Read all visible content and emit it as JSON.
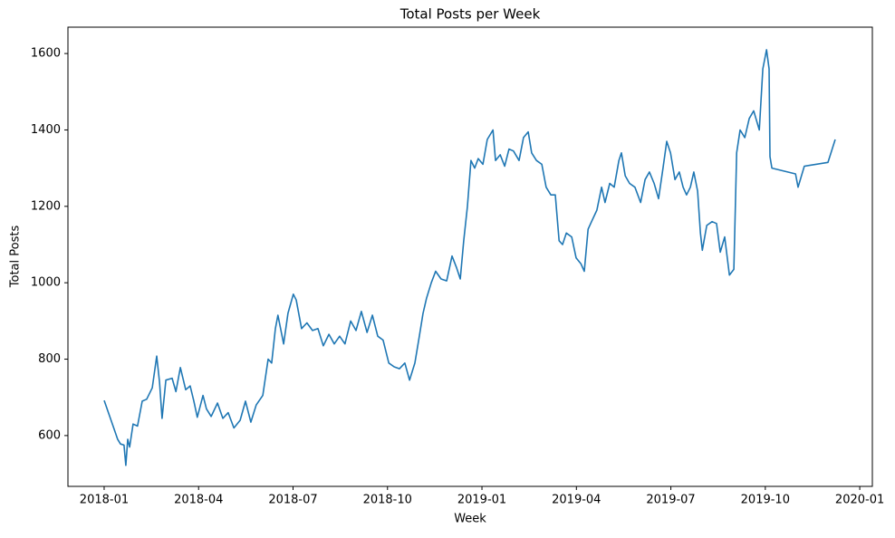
{
  "chart_data": {
    "type": "line",
    "title": "Total Posts per Week",
    "x_label": "Week",
    "y_label": "Total Posts",
    "xlim": [
      -1.15,
      24.4
    ],
    "ylim": [
      467,
      1669
    ],
    "xticks": [
      {
        "value": 0,
        "label": "2018-01"
      },
      {
        "value": 3,
        "label": "2018-04"
      },
      {
        "value": 6,
        "label": "2018-07"
      },
      {
        "value": 9,
        "label": "2018-10"
      },
      {
        "value": 12,
        "label": "2019-01"
      },
      {
        "value": 15,
        "label": "2019-04"
      },
      {
        "value": 18,
        "label": "2019-07"
      },
      {
        "value": 21,
        "label": "2019-10"
      },
      {
        "value": 24,
        "label": "2020-01"
      }
    ],
    "yticks": [
      600,
      800,
      1000,
      1200,
      1400,
      1600
    ],
    "x": [
      0,
      0.43,
      0.52,
      0.63,
      0.69,
      0.75,
      0.81,
      0.92,
      1.06,
      1.21,
      1.35,
      1.53,
      1.67,
      1.76,
      1.84,
      1.96,
      2.16,
      2.28,
      2.42,
      2.59,
      2.73,
      2.85,
      2.96,
      3.14,
      3.25,
      3.4,
      3.6,
      3.77,
      3.94,
      4.12,
      4.32,
      4.49,
      4.66,
      4.83,
      5.04,
      5.21,
      5.32,
      5.44,
      5.52,
      5.7,
      5.84,
      6.01,
      6.1,
      6.27,
      6.44,
      6.62,
      6.79,
      6.96,
      7.14,
      7.31,
      7.48,
      7.65,
      7.83,
      8.0,
      8.17,
      8.35,
      8.52,
      8.69,
      8.86,
      9.04,
      9.21,
      9.38,
      9.55,
      9.7,
      9.87,
      10.01,
      10.13,
      10.24,
      10.39,
      10.53,
      10.7,
      10.88,
      11.05,
      11.19,
      11.31,
      11.42,
      11.54,
      11.65,
      11.77,
      11.88,
      12.03,
      12.17,
      12.35,
      12.43,
      12.58,
      12.72,
      12.86,
      13.0,
      13.18,
      13.32,
      13.47,
      13.58,
      13.73,
      13.9,
      14.04,
      14.19,
      14.33,
      14.45,
      14.56,
      14.68,
      14.85,
      14.99,
      15.14,
      15.25,
      15.37,
      15.48,
      15.65,
      15.8,
      15.91,
      16.06,
      16.2,
      16.35,
      16.43,
      16.55,
      16.69,
      16.86,
      17.04,
      17.18,
      17.32,
      17.47,
      17.61,
      17.75,
      17.87,
      17.99,
      18.13,
      18.27,
      18.39,
      18.5,
      18.62,
      18.73,
      18.85,
      18.94,
      19.0,
      19.14,
      19.31,
      19.45,
      19.57,
      19.71,
      19.86,
      20.0,
      20.09,
      20.2,
      20.35,
      20.49,
      20.63,
      20.81,
      20.92,
      21.04,
      21.12,
      21.15,
      21.21,
      21.96,
      22.04,
      22.24,
      22.99,
      23.22
    ],
    "series": [
      {
        "name": "Total Posts",
        "color": "#1f77b4",
        "values": [
          692,
          590,
          578,
          575,
          522,
          590,
          570,
          630,
          625,
          690,
          695,
          725,
          808,
          740,
          645,
          745,
          750,
          715,
          778,
          720,
          730,
          690,
          648,
          705,
          670,
          650,
          685,
          645,
          660,
          620,
          640,
          690,
          635,
          680,
          705,
          800,
          790,
          880,
          915,
          840,
          920,
          970,
          955,
          880,
          895,
          875,
          880,
          835,
          865,
          840,
          860,
          840,
          900,
          875,
          925,
          870,
          915,
          860,
          850,
          790,
          780,
          775,
          790,
          745,
          790,
          860,
          920,
          960,
          1000,
          1030,
          1010,
          1005,
          1070,
          1040,
          1010,
          1110,
          1200,
          1320,
          1300,
          1325,
          1310,
          1375,
          1400,
          1320,
          1335,
          1305,
          1350,
          1345,
          1320,
          1380,
          1395,
          1340,
          1320,
          1310,
          1250,
          1230,
          1230,
          1110,
          1100,
          1130,
          1120,
          1065,
          1050,
          1030,
          1140,
          1160,
          1190,
          1250,
          1210,
          1260,
          1250,
          1320,
          1340,
          1280,
          1260,
          1250,
          1210,
          1270,
          1290,
          1260,
          1220,
          1300,
          1370,
          1340,
          1270,
          1290,
          1250,
          1230,
          1250,
          1290,
          1240,
          1130,
          1085,
          1150,
          1160,
          1155,
          1080,
          1120,
          1020,
          1035,
          1340,
          1400,
          1380,
          1430,
          1450,
          1400,
          1560,
          1610,
          1560,
          1330,
          1300,
          1285,
          1250,
          1305,
          1315,
          1375
        ]
      }
    ]
  }
}
